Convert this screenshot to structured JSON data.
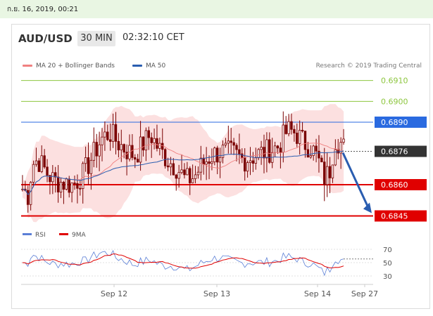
{
  "timestamp": "ก.ย. 16, 2019, 00:21",
  "header": {
    "pair": "AUD/USD",
    "timeframe": "30 MIN",
    "time": "02:32:10 CET"
  },
  "legend": {
    "items": [
      {
        "label": "MA 20 + Bollinger Bands",
        "color": "#f08080"
      },
      {
        "label": "MA 50",
        "color": "#2a5db0"
      }
    ]
  },
  "attribution": "Research © 2019 Trading Central",
  "colors": {
    "target": "#8dc63f",
    "resistance": "#2a6ae0",
    "support": "#e00000",
    "current": "#333333",
    "arrow": "#2a5db0",
    "up_candle": "#7a0000",
    "down_candle": "#7a0000"
  },
  "chart_data": [
    {
      "type": "candlestick",
      "y_range": [
        0.6838,
        0.6918
      ],
      "levels": [
        {
          "value": 0.691,
          "label": "0.6910",
          "kind": "target"
        },
        {
          "value": 0.69,
          "label": "0.6900",
          "kind": "target"
        },
        {
          "value": 0.689,
          "label": "0.6890",
          "kind": "resistance"
        },
        {
          "value": 0.6876,
          "label": "0.6876",
          "kind": "current"
        },
        {
          "value": 0.686,
          "label": "0.6860",
          "kind": "support"
        },
        {
          "value": 0.6845,
          "label": "0.6845",
          "kind": "support"
        }
      ],
      "forecast": {
        "from": 0.6876,
        "to": 0.6845,
        "direction": "down"
      },
      "x_labels": [
        "Sep 12",
        "Sep 13",
        "Sep 14",
        "Sep 27"
      ]
    },
    {
      "type": "line",
      "legend": [
        {
          "name": "RSI",
          "color": "#5b7fd6"
        },
        {
          "name": "9MA",
          "color": "#e00000"
        }
      ],
      "y_ticks": [
        "70",
        "50",
        "30"
      ],
      "ylim": [
        25,
        75
      ]
    }
  ]
}
